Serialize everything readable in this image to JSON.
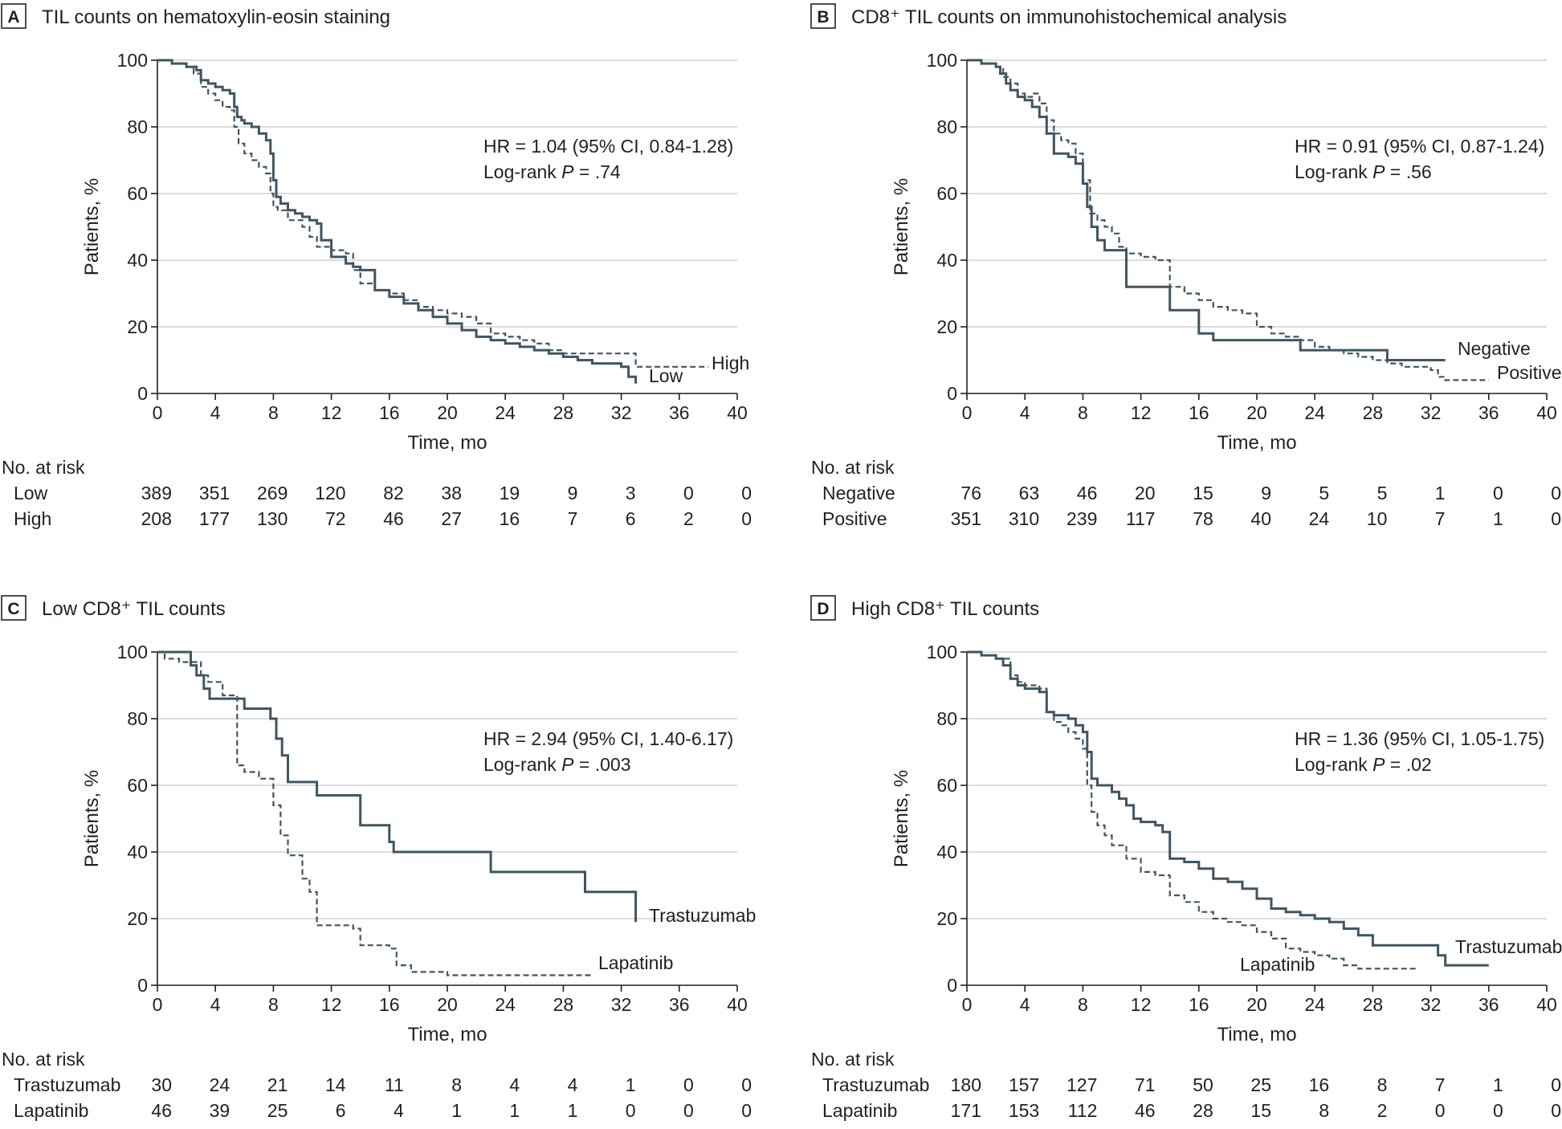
{
  "chart_data": [
    {
      "type": "line",
      "panel_label": "A",
      "title": "TIL counts on hematoxylin-eosin staining",
      "xlabel": "Time, mo",
      "ylabel": "Patients, %",
      "xlim": [
        0,
        40
      ],
      "ylim": [
        0,
        100
      ],
      "xticks": [
        "0",
        "4",
        "8",
        "12",
        "16",
        "20",
        "24",
        "28",
        "32",
        "36",
        "40"
      ],
      "yticks": [
        "0",
        "20",
        "40",
        "60",
        "80",
        "100"
      ],
      "annotation": {
        "line1": "HR = 1.04 (95% CI, 0.84-1.28)",
        "line2_prefix": "Log-rank ",
        "line2_p": "P",
        "line2_value": " = .74"
      },
      "series": [
        {
          "name": "Low",
          "style": "solid",
          "x": [
            0,
            1,
            2,
            2.7,
            3,
            3.5,
            4,
            4.5,
            5,
            5.3,
            5.5,
            5.8,
            6,
            6.5,
            7,
            7.5,
            7.8,
            8,
            8.2,
            8.5,
            9,
            9.5,
            10,
            10.5,
            11,
            11.3,
            12,
            13,
            13.5,
            14,
            15,
            16,
            17,
            18,
            19,
            20,
            21,
            22,
            23,
            24,
            25,
            26,
            27,
            28,
            29,
            30,
            31,
            32,
            32.5,
            33
          ],
          "y": [
            100,
            99,
            98,
            97,
            94,
            93,
            92,
            91,
            90,
            86,
            83,
            82,
            81,
            80,
            78,
            76,
            72,
            64,
            59,
            57,
            55,
            54,
            53,
            52,
            51,
            46,
            41,
            39,
            38,
            37,
            31,
            29,
            27,
            25,
            23,
            21,
            19,
            17,
            16,
            15,
            14,
            13,
            12,
            11,
            10,
            9,
            9,
            8,
            5,
            3
          ]
        },
        {
          "name": "High",
          "style": "dashed",
          "x": [
            0,
            1,
            2,
            2.5,
            3,
            3.5,
            4,
            4.5,
            5,
            5.3,
            5.6,
            6,
            6.5,
            7,
            7.5,
            7.8,
            8,
            8.3,
            9,
            10,
            10.5,
            11,
            12,
            13,
            13.5,
            14,
            15,
            16,
            17,
            18,
            19,
            20,
            21,
            22,
            23,
            24,
            25,
            26,
            27,
            28,
            29,
            30,
            31,
            32,
            33,
            34,
            35,
            36,
            37,
            38
          ],
          "y": [
            100,
            99,
            98,
            96,
            92,
            90,
            88,
            86,
            85,
            80,
            75,
            72,
            70,
            68,
            66,
            60,
            56,
            55,
            52,
            50,
            47,
            44,
            43,
            42,
            37,
            33,
            31,
            30,
            28,
            26,
            25,
            24,
            23,
            21,
            18,
            17,
            16,
            15,
            13,
            12,
            12,
            12,
            12,
            12,
            8,
            8,
            8,
            8,
            8,
            8
          ]
        }
      ],
      "series_labels": [
        "High",
        "Low"
      ],
      "risk_table": {
        "header": "No. at risk",
        "rows": [
          {
            "label": "Low",
            "values": [
              "389",
              "351",
              "269",
              "120",
              "82",
              "38",
              "19",
              "9",
              "3",
              "0",
              "0"
            ]
          },
          {
            "label": "High",
            "values": [
              "208",
              "177",
              "130",
              "72",
              "46",
              "27",
              "16",
              "7",
              "6",
              "2",
              "0"
            ]
          }
        ]
      }
    },
    {
      "type": "line",
      "panel_label": "B",
      "title": "CD8⁺ TIL counts on immunohistochemical analysis",
      "xlabel": "Time, mo",
      "ylabel": "Patients, %",
      "xlim": [
        0,
        40
      ],
      "ylim": [
        0,
        100
      ],
      "xticks": [
        "0",
        "4",
        "8",
        "12",
        "16",
        "20",
        "24",
        "28",
        "32",
        "36",
        "40"
      ],
      "yticks": [
        "0",
        "20",
        "40",
        "60",
        "80",
        "100"
      ],
      "annotation": {
        "line1": "HR = 0.91 (95% CI, 0.87-1.24)",
        "line2_prefix": "Log-rank ",
        "line2_p": "P",
        "line2_value": " = .56"
      },
      "series": [
        {
          "name": "Negative",
          "style": "solid",
          "x": [
            0,
            1,
            2,
            2.3,
            2.7,
            3,
            3.5,
            4,
            4.5,
            5,
            5.5,
            6,
            7,
            7.5,
            8,
            8.3,
            8.6,
            9,
            9.5,
            10,
            11,
            12,
            13,
            14,
            15,
            16,
            17,
            18,
            19,
            20,
            21,
            22,
            23,
            24,
            25,
            26,
            27,
            28,
            29,
            30,
            31,
            32,
            33
          ],
          "y": [
            100,
            99,
            98,
            96,
            93,
            91,
            89,
            88,
            86,
            83,
            78,
            72,
            71,
            69,
            63,
            56,
            50,
            46,
            43,
            43,
            32,
            32,
            32,
            25,
            25,
            18,
            16,
            16,
            16,
            16,
            16,
            16,
            13,
            13,
            13,
            13,
            13,
            13,
            10,
            10,
            10,
            10,
            10
          ]
        },
        {
          "name": "Positive",
          "style": "dashed",
          "x": [
            0,
            1,
            2,
            2.5,
            3,
            3.5,
            4,
            4.5,
            5,
            5.5,
            6,
            6.5,
            7,
            7.5,
            8,
            8.5,
            9,
            9.5,
            10,
            10.5,
            11,
            12,
            13,
            14,
            15,
            16,
            17,
            18,
            19,
            20,
            21,
            22,
            23,
            24,
            25,
            26,
            27,
            28,
            29,
            30,
            31,
            32,
            32.5,
            33,
            34,
            35,
            36
          ],
          "y": [
            100,
            99,
            98,
            95,
            93,
            90,
            89,
            90,
            87,
            82,
            78,
            76,
            75,
            72,
            64,
            54,
            52,
            50,
            48,
            44,
            42,
            41,
            40,
            32,
            30,
            28,
            26,
            25,
            24,
            20,
            18,
            17,
            16,
            14,
            13,
            12,
            11,
            10,
            9,
            8,
            8,
            7,
            5,
            4,
            4,
            4,
            4
          ]
        }
      ],
      "series_labels": [
        "Negative",
        "Positive"
      ],
      "risk_table": {
        "header": "No. at risk",
        "rows": [
          {
            "label": "Negative",
            "values": [
              "76",
              "63",
              "46",
              "20",
              "15",
              "9",
              "5",
              "5",
              "1",
              "0",
              "0"
            ]
          },
          {
            "label": "Positive",
            "values": [
              "351",
              "310",
              "239",
              "117",
              "78",
              "40",
              "24",
              "10",
              "7",
              "1",
              "0"
            ]
          }
        ]
      }
    },
    {
      "type": "line",
      "panel_label": "C",
      "title": "Low CD8⁺ TIL counts",
      "xlabel": "Time, mo",
      "ylabel": "Patients, %",
      "xlim": [
        0,
        40
      ],
      "ylim": [
        0,
        100
      ],
      "xticks": [
        "0",
        "4",
        "8",
        "12",
        "16",
        "20",
        "24",
        "28",
        "32",
        "36",
        "40"
      ],
      "yticks": [
        "0",
        "20",
        "40",
        "60",
        "80",
        "100"
      ],
      "annotation": {
        "line1": "HR = 2.94 (95% CI, 1.40-6.17)",
        "line2_prefix": "Log-rank ",
        "line2_p": "P",
        "line2_value": " = .003"
      },
      "series": [
        {
          "name": "Trastuzumab",
          "style": "solid",
          "x": [
            0,
            2.3,
            2.7,
            3.2,
            3.6,
            5,
            6,
            7.5,
            7.8,
            8.2,
            8.6,
            9,
            11,
            14,
            16,
            16.3,
            22.8,
            23,
            29.5,
            33
          ],
          "y": [
            100,
            96,
            93,
            89,
            86,
            86,
            83,
            83,
            80,
            74,
            69,
            61,
            57,
            48,
            43,
            40,
            40,
            34,
            28,
            19
          ]
        },
        {
          "name": "Lapatinib",
          "style": "dashed",
          "x": [
            0,
            0.5,
            1.5,
            3,
            3.5,
            4.5,
            5.5,
            6,
            7,
            8,
            8.5,
            9,
            10,
            10.5,
            11,
            13.5,
            14,
            16,
            16.5,
            17.5,
            20,
            24,
            28,
            30
          ],
          "y": [
            100,
            98,
            97,
            93,
            91,
            87,
            66,
            64,
            62,
            54,
            45,
            39,
            32,
            28,
            18,
            17,
            12,
            11,
            6,
            4,
            3,
            3,
            3,
            3
          ]
        }
      ],
      "series_labels": [
        "Trastuzumab",
        "Lapatinib"
      ],
      "risk_table": {
        "header": "No. at risk",
        "rows": [
          {
            "label": "Trastuzumab",
            "values": [
              "30",
              "24",
              "21",
              "14",
              "11",
              "8",
              "4",
              "4",
              "1",
              "0",
              "0"
            ]
          },
          {
            "label": "Lapatinib",
            "values": [
              "46",
              "39",
              "25",
              "6",
              "4",
              "1",
              "1",
              "1",
              "0",
              "0",
              "0"
            ]
          }
        ]
      }
    },
    {
      "type": "line",
      "panel_label": "D",
      "title": "High CD8⁺ TIL counts",
      "xlabel": "Time, mo",
      "ylabel": "Patients, %",
      "xlim": [
        0,
        40
      ],
      "ylim": [
        0,
        100
      ],
      "xticks": [
        "0",
        "4",
        "8",
        "12",
        "16",
        "20",
        "24",
        "28",
        "32",
        "36",
        "40"
      ],
      "yticks": [
        "0",
        "20",
        "40",
        "60",
        "80",
        "100"
      ],
      "annotation": {
        "line1": "HR = 1.36 (95% CI, 1.05-1.75)",
        "line2_prefix": "Log-rank ",
        "line2_p": "P",
        "line2_value": " = .02"
      },
      "series": [
        {
          "name": "Trastuzumab",
          "style": "solid",
          "x": [
            0,
            1,
            2,
            2.5,
            3,
            3.5,
            4,
            4.5,
            5,
            5.5,
            6,
            7,
            7.5,
            8,
            8.3,
            8.6,
            9,
            10,
            10.5,
            11,
            11.5,
            12,
            13,
            13.5,
            14,
            15,
            16,
            17,
            18,
            19,
            20,
            21,
            22,
            23,
            24,
            25,
            26,
            27,
            28,
            29,
            30,
            31,
            32,
            32.5,
            33,
            34,
            35,
            36
          ],
          "y": [
            100,
            99,
            98,
            96,
            92,
            90,
            89,
            89,
            88,
            82,
            81,
            80,
            78,
            76,
            70,
            62,
            60,
            58,
            56,
            54,
            50,
            49,
            48,
            46,
            38,
            37,
            35,
            32,
            31,
            29,
            26,
            23,
            22,
            21,
            20,
            19,
            17,
            15,
            12,
            12,
            12,
            12,
            12,
            9,
            6,
            6,
            6,
            6
          ]
        },
        {
          "name": "Lapatinib",
          "style": "dashed",
          "x": [
            0,
            1,
            2,
            3,
            3.5,
            4,
            4.5,
            5,
            5.5,
            6,
            6.5,
            7,
            7.5,
            8,
            8.3,
            8.6,
            9,
            9.5,
            10,
            11,
            12,
            13,
            14,
            15,
            16,
            17,
            18,
            19,
            20,
            21,
            22,
            23,
            24,
            25,
            26,
            27,
            28,
            29,
            30,
            31
          ],
          "y": [
            100,
            99,
            98,
            93,
            91,
            90,
            90,
            89,
            82,
            79,
            78,
            76,
            74,
            71,
            60,
            52,
            48,
            45,
            42,
            38,
            34,
            33,
            27,
            25,
            22,
            20,
            19,
            18,
            16,
            14,
            11,
            10,
            9,
            8,
            6,
            5,
            5,
            5,
            5,
            5
          ]
        }
      ],
      "series_labels": [
        "Trastuzumab",
        "Lapatinib"
      ],
      "risk_table": {
        "header": "No. at risk",
        "rows": [
          {
            "label": "Trastuzumab",
            "values": [
              "180",
              "157",
              "127",
              "71",
              "50",
              "25",
              "16",
              "8",
              "7",
              "1",
              "0"
            ]
          },
          {
            "label": "Lapatinib",
            "values": [
              "171",
              "153",
              "112",
              "46",
              "28",
              "15",
              "8",
              "2",
              "0",
              "0",
              "0"
            ]
          }
        ]
      }
    }
  ]
}
